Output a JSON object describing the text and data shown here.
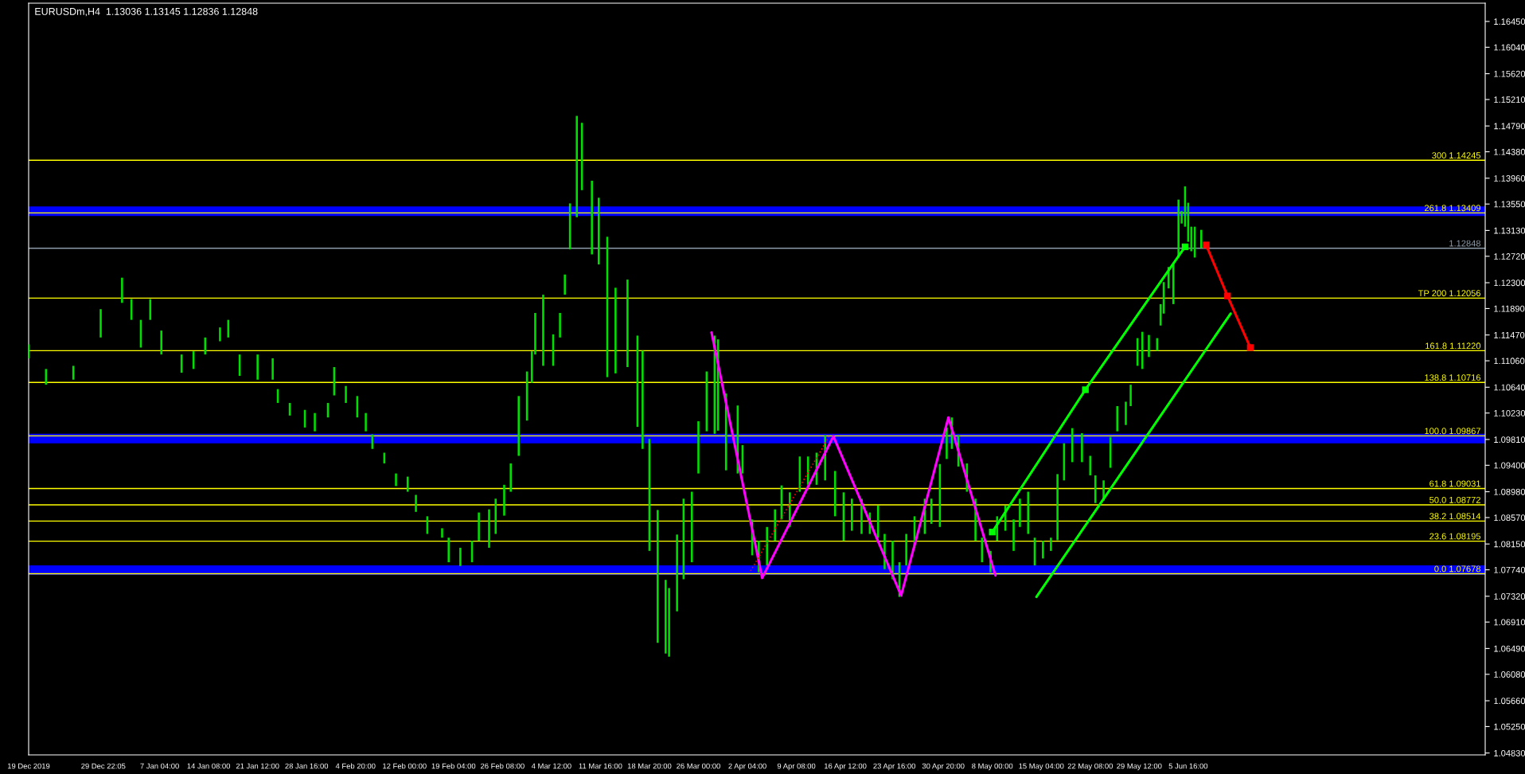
{
  "chart_data": {
    "type": "bar",
    "title": "EURUSDm,H4  1.13036 1.13145 1.12836 1.12848",
    "xlim": [
      "2019-12-19T00:00",
      "2020-07-19T03:00"
    ],
    "ylim": [
      1.048,
      1.1674
    ],
    "xticks": [
      {
        "value": "2019-12-19T00:00",
        "label": "19 Dec 2019"
      },
      {
        "value": "2019-12-29T22:05",
        "label": "29 Dec 22:05"
      },
      {
        "value": "2020-01-07T04:00",
        "label": "7 Jan 04:00"
      },
      {
        "value": "2020-01-14T08:00",
        "label": "14 Jan 08:00"
      },
      {
        "value": "2020-01-21T12:00",
        "label": "21 Jan 12:00"
      },
      {
        "value": "2020-01-28T16:00",
        "label": "28 Jan 16:00"
      },
      {
        "value": "2020-02-04T20:00",
        "label": "4 Feb 20:00"
      },
      {
        "value": "2020-02-12T00:00",
        "label": "12 Feb 00:00"
      },
      {
        "value": "2020-02-19T04:00",
        "label": "19 Feb 04:00"
      },
      {
        "value": "2020-02-26T08:00",
        "label": "26 Feb 08:00"
      },
      {
        "value": "2020-03-04T12:00",
        "label": "4 Mar 12:00"
      },
      {
        "value": "2020-03-11T16:00",
        "label": "11 Mar 16:00"
      },
      {
        "value": "2020-03-18T20:00",
        "label": "18 Mar 20:00"
      },
      {
        "value": "2020-03-26T00:00",
        "label": "26 Mar 00:00"
      },
      {
        "value": "2020-04-02T04:00",
        "label": "2 Apr 04:00"
      },
      {
        "value": "2020-04-09T08:00",
        "label": "9 Apr 08:00"
      },
      {
        "value": "2020-04-16T12:00",
        "label": "16 Apr 12:00"
      },
      {
        "value": "2020-04-23T16:00",
        "label": "23 Apr 16:00"
      },
      {
        "value": "2020-04-30T20:00",
        "label": "30 Apr 20:00"
      },
      {
        "value": "2020-05-08T00:00",
        "label": "8 May 00:00"
      },
      {
        "value": "2020-05-15T04:00",
        "label": "15 May 04:00"
      },
      {
        "value": "2020-05-22T08:00",
        "label": "22 May 08:00"
      },
      {
        "value": "2020-05-29T12:00",
        "label": "29 May 12:00"
      },
      {
        "value": "2020-06-05T16:00",
        "label": "5 Jun 16:00"
      }
    ],
    "yticks": [
      {
        "value": 1.0483,
        "label": "1.04830"
      },
      {
        "value": 1.0525,
        "label": "1.05250"
      },
      {
        "value": 1.0566,
        "label": "1.05660"
      },
      {
        "value": 1.0608,
        "label": "1.06080"
      },
      {
        "value": 1.0649,
        "label": "1.06490"
      },
      {
        "value": 1.0691,
        "label": "1.06910"
      },
      {
        "value": 1.0732,
        "label": "1.07320"
      },
      {
        "value": 1.0774,
        "label": "1.07740"
      },
      {
        "value": 1.0815,
        "label": "1.08150"
      },
      {
        "value": 1.0857,
        "label": "1.08570"
      },
      {
        "value": 1.0898,
        "label": "1.08980"
      },
      {
        "value": 1.094,
        "label": "1.09400"
      },
      {
        "value": 1.0981,
        "label": "1.09810"
      },
      {
        "value": 1.1023,
        "label": "1.10230"
      },
      {
        "value": 1.1064,
        "label": "1.10640"
      },
      {
        "value": 1.1106,
        "label": "1.11060"
      },
      {
        "value": 1.1147,
        "label": "1.11470"
      },
      {
        "value": 1.1189,
        "label": "1.11890"
      },
      {
        "value": 1.123,
        "label": "1.12300"
      },
      {
        "value": 1.1272,
        "label": "1.12720"
      },
      {
        "value": 1.1313,
        "label": "1.13130"
      },
      {
        "value": 1.1355,
        "label": "1.13550"
      },
      {
        "value": 1.1396,
        "label": "1.13960"
      },
      {
        "value": 1.1438,
        "label": "1.14380"
      },
      {
        "value": 1.1479,
        "label": "1.14790"
      },
      {
        "value": 1.1521,
        "label": "1.15210"
      },
      {
        "value": 1.1562,
        "label": "1.15620"
      },
      {
        "value": 1.1604,
        "label": "1.16040"
      },
      {
        "value": 1.1645,
        "label": "1.16450"
      }
    ],
    "series": [
      {
        "color": "#00e000",
        "x": [
          "2019-12-19T00:00",
          "2019-12-21T13:00",
          "2019-12-25T13:00",
          "2019-12-29T13:00",
          "2020-01-01T16:00",
          "2020-01-03T01:00",
          "2020-01-04T10:00",
          "2020-01-05T19:00",
          "2020-01-07T10:00",
          "2020-01-10T09:00",
          "2020-01-12T03:00",
          "2020-01-13T20:00",
          "2020-01-16T00:00",
          "2020-01-17T05:00",
          "2020-01-18T21:00",
          "2020-01-21T12:00",
          "2020-01-23T17:00",
          "2020-01-24T11:00",
          "2020-01-26T05:00",
          "2020-01-28T10:00",
          "2020-01-29T21:00",
          "2020-01-31T19:00",
          "2020-02-01T17:00",
          "2020-02-03T10:00",
          "2020-02-05T02:00",
          "2020-02-06T08:00",
          "2020-02-07T07:00",
          "2020-02-09T01:00",
          "2020-02-10T18:00",
          "2020-02-12T11:00",
          "2020-02-13T16:00",
          "2020-02-15T08:00",
          "2020-02-17T12:00",
          "2020-02-18T11:00",
          "2020-02-20T04:00",
          "2020-02-21T21:00",
          "2020-02-22T21:00",
          "2020-02-24T09:00",
          "2020-02-25T08:00",
          "2020-02-26T14:00",
          "2020-02-27T13:00",
          "2020-02-28T17:00",
          "2020-02-29T22:00",
          "2020-03-01T15:00",
          "2020-03-02T03:00",
          "2020-03-03T07:00",
          "2020-03-04T18:00",
          "2020-03-05T18:00",
          "2020-03-06T11:00",
          "2020-03-07T05:00",
          "2020-03-08T05:00",
          "2020-03-08T23:00",
          "2020-03-10T10:00",
          "2020-03-11T10:00",
          "2020-03-12T16:00",
          "2020-03-13T21:00",
          "2020-03-15T15:00",
          "2020-03-17T02:00",
          "2020-03-17T20:00",
          "2020-03-18T20:00",
          "2020-03-20T01:00",
          "2020-03-21T05:00",
          "2020-03-21T17:00",
          "2020-03-22T21:00",
          "2020-03-23T20:00",
          "2020-03-25T01:00",
          "2020-03-26T00:00",
          "2020-03-27T05:00",
          "2020-03-28T09:00",
          "2020-03-28T21:00",
          "2020-03-30T01:00",
          "2020-03-31T18:00",
          "2020-04-01T11:00",
          "2020-04-02T21:00",
          "2020-04-03T20:00",
          "2020-04-05T01:00",
          "2020-04-06T05:00",
          "2020-04-07T04:00",
          "2020-04-08T09:00",
          "2020-04-09T20:00",
          "2020-04-11T01:00",
          "2020-04-12T07:00",
          "2020-04-13T13:00",
          "2020-04-15T00:00",
          "2020-04-16T06:00",
          "2020-04-17T11:00",
          "2020-04-18T21:00",
          "2020-04-20T02:00",
          "2020-04-21T07:00",
          "2020-04-22T06:00",
          "2020-04-23T10:00",
          "2020-04-24T10:00",
          "2020-04-25T10:00",
          "2020-04-26T15:00",
          "2020-04-28T03:00",
          "2020-04-29T02:00",
          "2020-04-30T08:00",
          "2020-05-01T08:00",
          "2020-05-02T02:00",
          "2020-05-03T01:00",
          "2020-05-04T07:00",
          "2020-05-05T13:00",
          "2020-05-06T12:00",
          "2020-05-07T18:00",
          "2020-05-08T17:00",
          "2020-05-09T22:00",
          "2020-05-11T03:00",
          "2020-05-12T01:00",
          "2020-05-13T06:00",
          "2020-05-14T05:00",
          "2020-05-15T10:00",
          "2020-05-16T14:00",
          "2020-05-17T13:00",
          "2020-05-18T12:00",
          "2020-05-19T17:00",
          "2020-05-21T03:00",
          "2020-05-22T08:00",
          "2020-05-23T02:00",
          "2020-05-24T07:00",
          "2020-05-25T07:00",
          "2020-05-26T07:00",
          "2020-05-27T13:00",
          "2020-05-28T06:00",
          "2020-05-29T06:00",
          "2020-05-29T23:00",
          "2020-05-30T22:00",
          "2020-06-01T03:00",
          "2020-06-01T15:00",
          "2020-06-02T02:00",
          "2020-06-02T19:00",
          "2020-06-03T12:00",
          "2020-06-04T06:00",
          "2020-06-04T17:00",
          "2020-06-05T05:00",
          "2020-06-05T16:00",
          "2020-06-06T03:00",
          "2020-06-06T15:00",
          "2020-06-07T14:00"
        ],
        "base": [
          1.111,
          1.1068,
          1.1076,
          1.1143,
          1.1198,
          1.1171,
          1.1127,
          1.1171,
          1.1116,
          1.1087,
          1.1093,
          1.1116,
          1.1137,
          1.1143,
          1.1082,
          1.1076,
          1.1076,
          1.1039,
          1.1019,
          1.1,
          1.0994,
          1.1016,
          1.1051,
          1.1039,
          1.1016,
          1.0994,
          1.0966,
          1.0943,
          1.0907,
          1.0898,
          1.0866,
          1.0831,
          1.0825,
          1.0786,
          1.078,
          1.0786,
          1.082,
          1.0809,
          1.0831,
          1.086,
          1.0898,
          1.0955,
          1.1011,
          1.1071,
          1.1116,
          1.1098,
          1.1098,
          1.1143,
          1.1211,
          1.1283,
          1.1334,
          1.1377,
          1.1275,
          1.1259,
          1.108,
          1.1086,
          1.1096,
          1.1001,
          1.0966,
          1.0804,
          1.0658,
          1.0641,
          1.0636,
          1.0708,
          1.0759,
          1.0786,
          1.0927,
          1.0994,
          1.099,
          1.0995,
          1.0932,
          1.0927,
          1.0927,
          1.0797,
          1.077,
          1.0781,
          1.082,
          1.0854,
          1.0842,
          1.0898,
          1.0909,
          1.0909,
          1.0916,
          1.0859,
          1.082,
          1.0836,
          1.0831,
          1.0831,
          1.0825,
          1.0775,
          1.0759,
          1.0731,
          1.0781,
          1.0809,
          1.0831,
          1.0847,
          1.0842,
          1.095,
          1.0966,
          1.0938,
          1.0898,
          1.082,
          1.0786,
          1.077,
          1.082,
          1.0836,
          1.0804,
          1.0842,
          1.0831,
          1.0781,
          1.0792,
          1.0804,
          1.0821,
          1.0916,
          1.0945,
          1.0945,
          1.0924,
          1.088,
          1.0884,
          1.0936,
          1.0994,
          1.1004,
          1.1034,
          1.1098,
          1.1093,
          1.1112,
          1.1122,
          1.1162,
          1.1181,
          1.1221,
          1.1196,
          1.127,
          1.1324,
          1.1319,
          1.1295,
          1.128,
          1.127,
          1.1285
        ],
        "values": [
          0.0022,
          0.0025,
          0.0022,
          0.0045,
          0.004,
          0.0033,
          0.0044,
          0.0033,
          0.0038,
          0.0029,
          0.0028,
          0.0027,
          0.0022,
          0.0028,
          0.0034,
          0.004,
          0.0034,
          0.0022,
          0.002,
          0.0028,
          0.0029,
          0.0023,
          0.0045,
          0.0027,
          0.0034,
          0.0029,
          0.0023,
          0.0017,
          0.002,
          0.0024,
          0.0027,
          0.0028,
          0.0015,
          0.0039,
          0.0029,
          0.0034,
          0.0045,
          0.0061,
          0.0056,
          0.0049,
          0.0045,
          0.0095,
          0.0078,
          0.005,
          0.0066,
          0.0113,
          0.005,
          0.0039,
          0.0032,
          0.0073,
          0.0161,
          0.0107,
          0.0117,
          0.0106,
          0.0223,
          0.0136,
          0.0139,
          0.0145,
          0.0156,
          0.0178,
          0.0211,
          0.0117,
          0.0109,
          0.0122,
          0.0128,
          0.0112,
          0.0083,
          0.0095,
          0.0156,
          0.0145,
          0.0122,
          0.0108,
          0.0045,
          0.0057,
          0.005,
          0.0061,
          0.005,
          0.0054,
          0.0055,
          0.0056,
          0.0045,
          0.0051,
          0.0072,
          0.0072,
          0.0077,
          0.0051,
          0.0056,
          0.0034,
          0.0051,
          0.0056,
          0.0061,
          0.0055,
          0.005,
          0.005,
          0.0056,
          0.004,
          0.01,
          0.005,
          0.005,
          0.005,
          0.0045,
          0.0067,
          0.0039,
          0.0034,
          0.0039,
          0.004,
          0.005,
          0.0045,
          0.0067,
          0.0044,
          0.0028,
          0.0021,
          0.0105,
          0.0059,
          0.0054,
          0.0046,
          0.0031,
          0.0044,
          0.0032,
          0.0049,
          0.004,
          0.0037,
          0.0034,
          0.0044,
          0.0059,
          0.0035,
          0.002,
          0.0034,
          0.005,
          0.0034,
          0.0064,
          0.0092,
          0.002,
          0.0064,
          0.0062,
          0.0039,
          0.0049,
          0.0029
        ]
      },
      {
        "type": "line",
        "color": "#ff00ff",
        "line_style": "solid",
        "x": [
          "2020-03-27T22:00",
          "2020-04-04T08:00",
          "2020-04-14T18:00",
          "2020-04-24T16:00",
          "2020-05-01T14:00",
          "2020-05-08T11:00"
        ],
        "values": [
          1.1151,
          1.0761,
          1.0986,
          1.0733,
          1.1016,
          1.0765
        ]
      },
      {
        "type": "line",
        "color": "#ff0000",
        "line_style": "dotted",
        "x": [
          "2020-04-02T15:00",
          "2020-04-14T07:00"
        ],
        "values": [
          1.0772,
          1.0989
        ]
      },
      {
        "type": "line",
        "color": "#00ff00",
        "line_style": "solid",
        "marker": "square",
        "x": [
          "2020-05-08T00:00",
          "2020-05-21T15:00",
          "2020-06-05T05:00"
        ],
        "values": [
          1.0834,
          1.106,
          1.1287
        ]
      },
      {
        "type": "line",
        "color": "#00ff00",
        "line_style": "solid",
        "x": [
          "2020-05-14T11:00",
          "2020-06-11T21:00"
        ],
        "values": [
          1.0731,
          1.1181
        ]
      },
      {
        "type": "line",
        "color": "#ff0000",
        "line_style": "solid",
        "marker": "square",
        "x": [
          "2020-06-08T07:00",
          "2020-06-11T10:00",
          "2020-06-14T18:00"
        ],
        "values": [
          1.129,
          1.1209,
          1.1127
        ]
      }
    ],
    "bands": [
      {
        "axis": "y",
        "from": 1.1336,
        "to": 1.1351,
        "color": "#0000ff"
      },
      {
        "axis": "y",
        "from": 1.0975,
        "to": 1.099,
        "color": "#0000ff"
      },
      {
        "axis": "y",
        "from": 1.0766,
        "to": 1.0781,
        "color": "#0000ff"
      }
    ],
    "ref_lines": [
      {
        "axis": "y",
        "value": 1.14245,
        "label": "300 1.14245",
        "color": "#ffff00"
      },
      {
        "axis": "y",
        "value": 1.13409,
        "label": "261.8 1.13409",
        "color": "#ffff00"
      },
      {
        "axis": "y",
        "value": 1.12848,
        "label": "1.12848",
        "color": "#8c9aa8"
      },
      {
        "axis": "y",
        "value": 1.12056,
        "label": "TP 200 1.12056",
        "color": "#ffff00"
      },
      {
        "axis": "y",
        "value": 1.1122,
        "label": "161.8 1.11220",
        "color": "#ffff00"
      },
      {
        "axis": "y",
        "value": 1.10716,
        "label": "138.8 1.10716",
        "color": "#ffff00"
      },
      {
        "axis": "y",
        "value": 1.09867,
        "label": "100.0 1.09867",
        "color": "#ffff00"
      },
      {
        "axis": "y",
        "value": 1.09031,
        "label": "61.8 1.09031",
        "color": "#ffff00"
      },
      {
        "axis": "y",
        "value": 1.08772,
        "label": "50.0 1.08772",
        "color": "#ffff00"
      },
      {
        "axis": "y",
        "value": 1.08514,
        "label": "38.2 1.08514",
        "color": "#ffff00"
      },
      {
        "axis": "y",
        "value": 1.08195,
        "label": "23.6 1.08195",
        "color": "#ffff00"
      },
      {
        "axis": "y",
        "value": 1.07678,
        "label": "0.0 1.07678",
        "color": "#ffff00"
      }
    ]
  }
}
